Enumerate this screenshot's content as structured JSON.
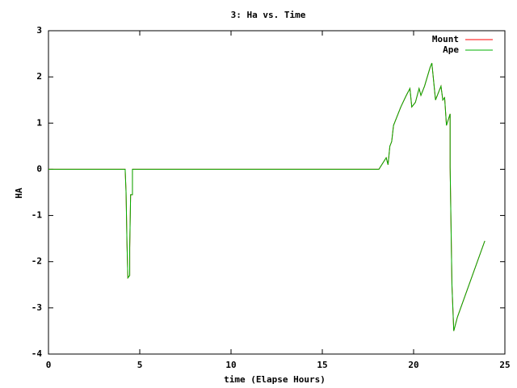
{
  "chart_data": {
    "type": "line",
    "title": "3: Ha vs. Time",
    "x_label": "time (Elapse Hours)",
    "y_label": "HA",
    "x": [
      0,
      4.2,
      4.25,
      4.3,
      4.35,
      4.45,
      4.45,
      4.5,
      4.6,
      4.6,
      18.1,
      18.5,
      18.6,
      18.7,
      18.8,
      18.9,
      19.3,
      19.6,
      19.8,
      19.9,
      20.1,
      20.3,
      20.4,
      20.6,
      20.9,
      21.0,
      21.2,
      21.5,
      21.6,
      21.7,
      21.8,
      22.0,
      22.0,
      22.1,
      22.2,
      22.4,
      23.9
    ],
    "series": [
      {
        "name": "Mount",
        "color": "#ff0000",
        "values": [
          0,
          0,
          -0.5,
          -1.6,
          -2.35,
          -2.3,
          -1.7,
          -0.55,
          -0.55,
          0,
          0,
          0.25,
          0.1,
          0.5,
          0.6,
          0.95,
          1.35,
          1.6,
          1.75,
          1.35,
          1.45,
          1.75,
          1.6,
          1.8,
          2.2,
          2.3,
          1.5,
          1.8,
          1.5,
          1.55,
          0.95,
          1.2,
          0.05,
          -2.5,
          -3.5,
          -3.2,
          -1.55
        ]
      },
      {
        "name": "Ape",
        "color": "#00b000",
        "values": [
          0,
          0,
          -0.5,
          -1.6,
          -2.35,
          -2.3,
          -1.7,
          -0.55,
          -0.55,
          0,
          0,
          0.25,
          0.1,
          0.5,
          0.6,
          0.95,
          1.35,
          1.6,
          1.75,
          1.35,
          1.45,
          1.75,
          1.6,
          1.8,
          2.2,
          2.3,
          1.5,
          1.8,
          1.5,
          1.55,
          0.95,
          1.2,
          0.05,
          -2.5,
          -3.5,
          -3.2,
          -1.55
        ]
      }
    ],
    "xlim": [
      0,
      25
    ],
    "xticks": [
      0,
      5,
      10,
      15,
      20,
      25
    ],
    "ylim": [
      -4,
      3
    ],
    "yticks": [
      -4,
      -3,
      -2,
      -1,
      0,
      1,
      2,
      3
    ],
    "legend": "top-right"
  }
}
